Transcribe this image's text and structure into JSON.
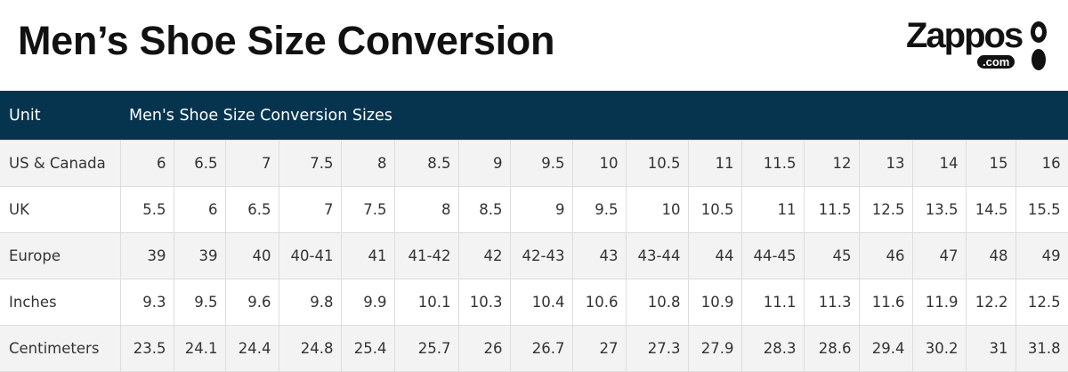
{
  "header": {
    "title": "Men’s Shoe Size Conversion",
    "logo": "Zappos",
    "logo_sub": ".com"
  },
  "table": {
    "columns": [
      "Unit",
      "Men's Shoe Size Conversion Sizes"
    ],
    "rows": [
      [
        "US & Canada",
        "6",
        "6.5",
        "7",
        "7.5",
        "8",
        "8.5",
        "9",
        "9.5",
        "10",
        "10.5",
        "11",
        "11.5",
        "12",
        "13",
        "14",
        "15",
        "16"
      ],
      [
        "UK",
        "5.5",
        "6",
        "6.5",
        "7",
        "7.5",
        "8",
        "8.5",
        "9",
        "9.5",
        "10",
        "10.5",
        "11",
        "11.5",
        "12.5",
        "13.5",
        "14.5",
        "15.5"
      ],
      [
        "Europe",
        "39",
        "39",
        "40",
        "40-41",
        "41",
        "41-42",
        "42",
        "42-43",
        "43",
        "43-44",
        "44",
        "44-45",
        "45",
        "46",
        "47",
        "48",
        "49"
      ],
      [
        "Inches",
        "9.3",
        "9.5",
        "9.6",
        "9.8",
        "9.9",
        "10.1",
        "10.3",
        "10.4",
        "10.6",
        "10.8",
        "10.9",
        "11.1",
        "11.3",
        "11.6",
        "11.9",
        "12.2",
        "12.5"
      ],
      [
        "Centimeters",
        "23.5",
        "24.1",
        "24.4",
        "24.8",
        "25.4",
        "25.7",
        "26",
        "26.7",
        "27",
        "27.3",
        "27.9",
        "28.3",
        "28.6",
        "29.4",
        "30.2",
        "31",
        "31.8"
      ]
    ]
  }
}
